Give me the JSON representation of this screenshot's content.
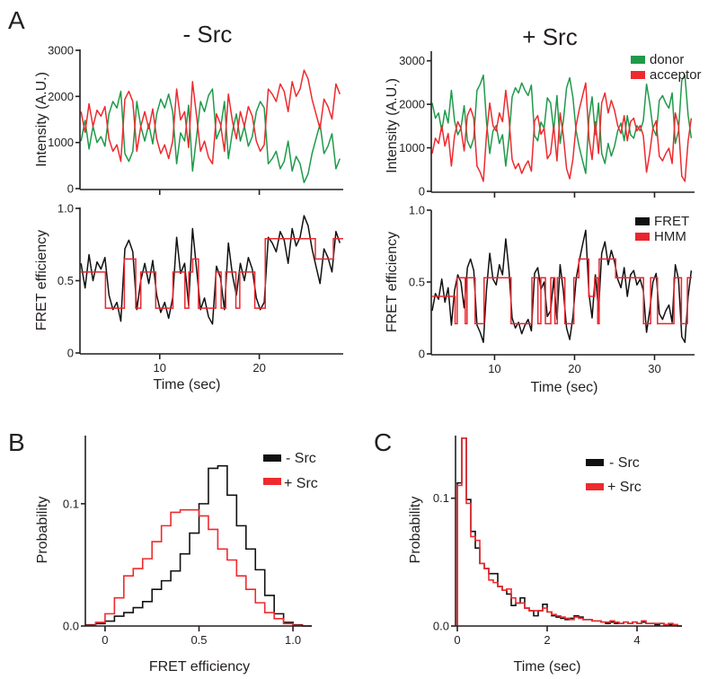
{
  "panels": {
    "a": "A",
    "b": "B",
    "c": "C"
  },
  "column_titles": {
    "minus": "- Src",
    "plus": "+ Src"
  },
  "chart_data": [
    {
      "type": "line",
      "panel": "A",
      "condition": "- Src",
      "ylabel": "Intensity (A.U.)",
      "xlabel": "",
      "xlim": [
        2.08,
        28.43
      ],
      "ylim": [
        0,
        3000
      ],
      "xticks": [
        10,
        20
      ],
      "xticklabels": [
        "",
        ""
      ],
      "yticks": [
        0,
        1000,
        2000,
        3000
      ],
      "yticklabels": [
        "0",
        "1000",
        "2000",
        "3000"
      ],
      "t_start": 2.1,
      "t_step": 0.4,
      "series": [
        {
          "name": "donor",
          "color": "#1f9a4a",
          "values": [
            1030,
            1480,
            860,
            1350,
            1000,
            1130,
            920,
            1620,
            1890,
            1750,
            2110,
            760,
            590,
            810,
            1890,
            1350,
            1030,
            1400,
            970,
            1620,
            1940,
            1750,
            2050,
            1670,
            540,
            1210,
            1030,
            1810,
            380,
            1130,
            1890,
            1670,
            2020,
            2160,
            1080,
            1300,
            1890,
            650,
            1240,
            1620,
            1030,
            1350,
            920,
            1130,
            1670,
            1890,
            1750,
            540,
            650,
            810,
            430,
            590,
            1030,
            380,
            700,
            540,
            130,
            320,
            760,
            1080,
            1400,
            760,
            920,
            1190,
            430,
            650
          ]
        },
        {
          "name": "acceptor",
          "color": "#ee2a2e",
          "values": [
            1670,
            1220,
            1840,
            1350,
            1700,
            1570,
            1780,
            1080,
            810,
            950,
            590,
            1940,
            2110,
            1890,
            810,
            1350,
            1670,
            1300,
            1730,
            1080,
            760,
            950,
            650,
            1030,
            2160,
            1490,
            1670,
            890,
            2320,
            1570,
            810,
            1030,
            680,
            540,
            1620,
            1400,
            810,
            2050,
            1460,
            1080,
            1670,
            1350,
            1780,
            1570,
            1030,
            810,
            950,
            2160,
            2050,
            1890,
            2270,
            2110,
            1670,
            2320,
            2000,
            2160,
            2570,
            2380,
            1940,
            1620,
            1300,
            1940,
            1780,
            1510,
            2270,
            2050
          ]
        }
      ]
    },
    {
      "type": "line",
      "panel": "A",
      "condition": "+ Src",
      "ylabel": "Intensity (A.U.)",
      "xlabel": "",
      "xlim": [
        2.2,
        35
      ],
      "ylim": [
        0,
        3200
      ],
      "xticks": [
        10,
        20,
        30
      ],
      "xticklabels": [
        "",
        "",
        ""
      ],
      "yticks": [
        0,
        1000,
        2000,
        3000
      ],
      "yticklabels": [
        "0",
        "1000",
        "2000",
        "3000"
      ],
      "legend": "top-right",
      "t_start": 2.2,
      "t_step": 0.4,
      "series": [
        {
          "name": "donor",
          "color": "#1f9a4a",
          "values": [
            2030,
            1680,
            1800,
            1390,
            1860,
            1570,
            2320,
            1620,
            1300,
            1450,
            1970,
            1160,
            990,
            1220,
            2320,
            2460,
            2670,
            1590,
            870,
            1390,
            1510,
            1100,
            1300,
            580,
            1220,
            2170,
            2380,
            2260,
            2490,
            2320,
            2200,
            2440,
            1280,
            1160,
            1590,
            1450,
            2150,
            2030,
            1390,
            2200,
            1100,
            1620,
            2380,
            2610,
            2150,
            1390,
            1010,
            700,
            410,
            1680,
            2170,
            1300,
            2030,
            870,
            640,
            1100,
            810,
            1040,
            1390,
            1570,
            1160,
            1740,
            1300,
            1220,
            1510,
            1390,
            1620,
            2460,
            2030,
            1450,
            1280,
            2090,
            2200,
            2030,
            1910,
            2260,
            1100,
            1390,
            2550,
            2670,
            1740,
            1220
          ]
        },
        {
          "name": "acceptor",
          "color": "#ee2a2e",
          "values": [
            870,
            1220,
            1100,
            1510,
            1040,
            1330,
            580,
            1280,
            1600,
            1450,
            930,
            1740,
            1910,
            1680,
            580,
            440,
            230,
            1310,
            2030,
            1510,
            1390,
            1800,
            1600,
            2320,
            1680,
            730,
            520,
            640,
            410,
            580,
            700,
            460,
            1620,
            1740,
            1310,
            1450,
            750,
            870,
            1510,
            700,
            1800,
            1280,
            520,
            290,
            750,
            1510,
            1890,
            2200,
            2490,
            1220,
            730,
            1600,
            870,
            2030,
            2260,
            1800,
            2090,
            1860,
            1510,
            1330,
            1740,
            1160,
            1600,
            1680,
            1390,
            1510,
            1280,
            440,
            870,
            1450,
            1620,
            810,
            700,
            870,
            990,
            640,
            1800,
            1510,
            350,
            230,
            1160,
            1680
          ]
        }
      ]
    },
    {
      "type": "line",
      "panel": "A",
      "condition": "- Src",
      "ylabel": "FRET efficiency",
      "xlabel": "Time (sec)",
      "xlim": [
        2.08,
        28.43
      ],
      "ylim": [
        0,
        1
      ],
      "xticks": [
        10,
        20
      ],
      "xticklabels": [
        "10",
        "20"
      ],
      "yticks": [
        0,
        0.5,
        1.0
      ],
      "yticklabels": [
        "0",
        "0.5",
        "1.0"
      ],
      "t_start": 2.1,
      "t_step": 0.4,
      "series": [
        {
          "name": "FRET",
          "color": "#111111",
          "values": [
            0.62,
            0.45,
            0.68,
            0.5,
            0.63,
            0.58,
            0.66,
            0.4,
            0.3,
            0.35,
            0.22,
            0.72,
            0.78,
            0.7,
            0.3,
            0.5,
            0.62,
            0.48,
            0.64,
            0.4,
            0.28,
            0.35,
            0.24,
            0.38,
            0.8,
            0.55,
            0.62,
            0.33,
            0.86,
            0.58,
            0.3,
            0.38,
            0.25,
            0.2,
            0.6,
            0.52,
            0.3,
            0.76,
            0.54,
            0.4,
            0.62,
            0.5,
            0.66,
            0.58,
            0.38,
            0.3,
            0.35,
            0.8,
            0.76,
            0.7,
            0.84,
            0.78,
            0.62,
            0.86,
            0.74,
            0.8,
            0.95,
            0.88,
            0.72,
            0.6,
            0.48,
            0.72,
            0.66,
            0.56,
            0.84,
            0.76
          ]
        }
      ],
      "hmm": {
        "name": "HMM",
        "color": "#e8262d",
        "steps": [
          [
            2.08,
            0.56
          ],
          [
            4.55,
            0.31
          ],
          [
            6.45,
            0.65
          ],
          [
            7.59,
            0.31
          ],
          [
            8.1,
            0.56
          ],
          [
            9.6,
            0.31
          ],
          [
            11.33,
            0.56
          ],
          [
            12.53,
            0.31
          ],
          [
            12.92,
            0.56
          ],
          [
            13.31,
            0.65
          ],
          [
            13.89,
            0.31
          ],
          [
            15.63,
            0.56
          ],
          [
            16.17,
            0.31
          ],
          [
            16.63,
            0.56
          ],
          [
            17.65,
            0.31
          ],
          [
            18.04,
            0.56
          ],
          [
            19.55,
            0.31
          ],
          [
            20.6,
            0.79
          ],
          [
            25.63,
            0.65
          ],
          [
            27.44,
            0.79
          ]
        ],
        "end": 28.43
      }
    },
    {
      "type": "line",
      "panel": "A",
      "condition": "+ Src",
      "ylabel": "FRET efficiency",
      "xlabel": "Time (sec)",
      "xlim": [
        2.2,
        35
      ],
      "ylim": [
        0,
        1
      ],
      "xticks": [
        10,
        20,
        30
      ],
      "xticklabels": [
        "10",
        "20",
        "30"
      ],
      "yticks": [
        0,
        0.5,
        1.0
      ],
      "yticklabels": [
        "0",
        "0.5",
        "1.0"
      ],
      "legend": "top-right",
      "t_start": 2.2,
      "t_step": 0.4,
      "series": [
        {
          "name": "FRET",
          "color": "#111111",
          "values": [
            0.3,
            0.42,
            0.38,
            0.52,
            0.36,
            0.46,
            0.2,
            0.44,
            0.55,
            0.5,
            0.32,
            0.6,
            0.66,
            0.58,
            0.2,
            0.15,
            0.08,
            0.45,
            0.7,
            0.52,
            0.48,
            0.62,
            0.55,
            0.8,
            0.58,
            0.25,
            0.18,
            0.22,
            0.14,
            0.2,
            0.24,
            0.16,
            0.56,
            0.6,
            0.45,
            0.5,
            0.26,
            0.3,
            0.52,
            0.24,
            0.62,
            0.44,
            0.18,
            0.1,
            0.26,
            0.52,
            0.65,
            0.76,
            0.86,
            0.42,
            0.25,
            0.55,
            0.3,
            0.7,
            0.78,
            0.62,
            0.72,
            0.64,
            0.52,
            0.46,
            0.6,
            0.4,
            0.55,
            0.58,
            0.48,
            0.52,
            0.44,
            0.15,
            0.3,
            0.5,
            0.56,
            0.28,
            0.24,
            0.3,
            0.34,
            0.22,
            0.62,
            0.52,
            0.12,
            0.08,
            0.4,
            0.58
          ]
        }
      ],
      "hmm": {
        "name": "HMM",
        "color": "#e8262d",
        "steps": [
          [
            2.22,
            0.4
          ],
          [
            5.07,
            0.21
          ],
          [
            5.33,
            0.53
          ],
          [
            6.34,
            0.21
          ],
          [
            6.56,
            0.53
          ],
          [
            7.57,
            0.21
          ],
          [
            8.69,
            0.53
          ],
          [
            12.06,
            0.21
          ],
          [
            14.67,
            0.53
          ],
          [
            15.42,
            0.21
          ],
          [
            15.79,
            0.53
          ],
          [
            16.36,
            0.21
          ],
          [
            17.03,
            0.53
          ],
          [
            17.55,
            0.21
          ],
          [
            17.85,
            0.53
          ],
          [
            18.79,
            0.21
          ],
          [
            19.91,
            0.53
          ],
          [
            20.54,
            0.66
          ],
          [
            21.78,
            0.4
          ],
          [
            22.52,
            0.53
          ],
          [
            22.9,
            0.21
          ],
          [
            23.08,
            0.66
          ],
          [
            25.14,
            0.53
          ],
          [
            28.62,
            0.21
          ],
          [
            29.51,
            0.53
          ],
          [
            30.37,
            0.21
          ],
          [
            32.43,
            0.53
          ],
          [
            33.36,
            0.21
          ],
          [
            34.11,
            0.53
          ]
        ],
        "end": 34.67
      }
    },
    {
      "type": "bar",
      "panel": "B",
      "histogram": true,
      "xlabel": "FRET efficiency",
      "ylabel": "Probability",
      "xlim": [
        -0.1,
        1.1
      ],
      "ylim": [
        0,
        0.155
      ],
      "xticks": [
        0,
        0.5,
        1.0
      ],
      "xticklabels": [
        "0",
        "0.5",
        "1.0"
      ],
      "yticks": [
        0,
        0.1
      ],
      "yticklabels": [
        "0.0",
        "0.1"
      ],
      "legend": "top-right",
      "bin_start": -0.1,
      "bin_width": 0.05,
      "series": [
        {
          "name": "- Src",
          "color": "#111111",
          "values": [
            0.001,
            0.002,
            0.004,
            0.008,
            0.011,
            0.015,
            0.02,
            0.03,
            0.037,
            0.045,
            0.059,
            0.076,
            0.1,
            0.129,
            0.131,
            0.107,
            0.082,
            0.063,
            0.046,
            0.025,
            0.01,
            0.003,
            0.001,
            0.0
          ]
        },
        {
          "name": "+ Src",
          "color": "#ee2a2e",
          "values": [
            0.0005,
            0.003,
            0.01,
            0.023,
            0.041,
            0.047,
            0.055,
            0.069,
            0.082,
            0.093,
            0.095,
            0.095,
            0.09,
            0.079,
            0.063,
            0.054,
            0.041,
            0.03,
            0.019,
            0.011,
            0.006,
            0.002,
            0.0005,
            0.0
          ]
        }
      ]
    },
    {
      "type": "bar",
      "panel": "C",
      "histogram": true,
      "xlabel": "Time (sec)",
      "ylabel": "Probability",
      "xlim": [
        0,
        5
      ],
      "ylim": [
        0,
        0.149
      ],
      "xticks": [
        0,
        2,
        4
      ],
      "xticklabels": [
        "0",
        "2",
        "4"
      ],
      "yticks": [
        0,
        0.1
      ],
      "yticklabels": [
        "0.0",
        "0.1"
      ],
      "legend": "top-right",
      "bin_start": 0,
      "bin_width": 0.1,
      "series": [
        {
          "name": "- Src",
          "color": "#111111",
          "values": [
            0.112,
            0.147,
            0.099,
            0.074,
            0.061,
            0.049,
            0.045,
            0.041,
            0.041,
            0.031,
            0.028,
            0.025,
            0.016,
            0.018,
            0.022,
            0.014,
            0.012,
            0.008,
            0.012,
            0.017,
            0.011,
            0.008,
            0.007,
            0.006,
            0.005,
            0.006,
            0.008,
            0.007,
            0.005,
            0.005,
            0.004,
            0.004,
            0.003,
            0.002,
            0.003,
            0.002,
            0.002,
            0.003,
            0.002,
            0.003,
            0.002,
            0.003,
            0.002,
            0.002,
            0.001,
            0.002,
            0.001,
            0.001,
            0.001,
            0.0
          ]
        },
        {
          "name": "+ Src",
          "color": "#ee2a2e",
          "values": [
            0.11,
            0.147,
            0.096,
            0.07,
            0.067,
            0.049,
            0.045,
            0.036,
            0.034,
            0.031,
            0.028,
            0.029,
            0.022,
            0.018,
            0.018,
            0.014,
            0.012,
            0.012,
            0.012,
            0.014,
            0.011,
            0.009,
            0.008,
            0.007,
            0.006,
            0.005,
            0.007,
            0.006,
            0.005,
            0.005,
            0.004,
            0.004,
            0.003,
            0.003,
            0.004,
            0.003,
            0.002,
            0.003,
            0.002,
            0.003,
            0.002,
            0.004,
            0.002,
            0.002,
            0.002,
            0.002,
            0.001,
            0.002,
            0.001,
            0.0
          ]
        }
      ]
    }
  ]
}
